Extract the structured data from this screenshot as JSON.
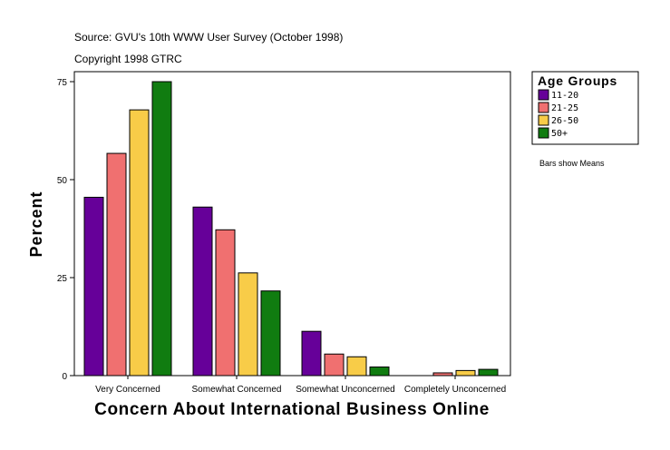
{
  "chart_data": {
    "type": "bar",
    "source_line": "Source: GVU's 10th WWW User Survey (October 1998)",
    "copyright_line": "Copyright 1998 GTRC",
    "xlabel": "Concern About International Business Online",
    "ylabel": "Percent",
    "categories": [
      "Very Concerned",
      "Somewhat Concerned",
      "Somewhat Unconcerned",
      "Completely Unconcerned"
    ],
    "series": [
      {
        "name": "11-20",
        "color": "#660099",
        "values": [
          45.5,
          43,
          11.3,
          0
        ]
      },
      {
        "name": "21-25",
        "color": "#f07070",
        "values": [
          56.7,
          37.2,
          5.5,
          0.7
        ]
      },
      {
        "name": "26-50",
        "color": "#f8cc48",
        "values": [
          67.8,
          26.2,
          4.8,
          1.3
        ]
      },
      {
        "name": "50+",
        "color": "#107c10",
        "values": [
          75,
          21.6,
          2.2,
          1.6
        ]
      }
    ],
    "ylim": [
      0,
      75
    ],
    "yticks": [
      0,
      25,
      50,
      75
    ],
    "grid": false,
    "legend": {
      "title": "Age Groups",
      "placement": "right"
    },
    "note": "Bars show Means"
  }
}
